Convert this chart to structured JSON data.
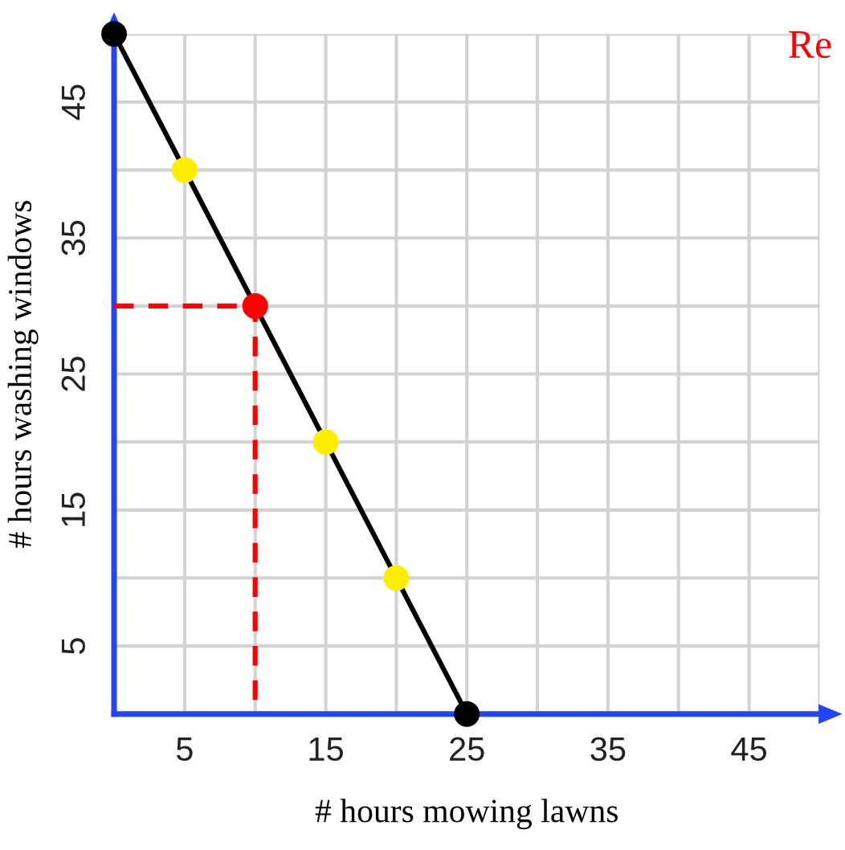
{
  "chart_data": {
    "type": "line",
    "xlabel": "# hours mowing lawns",
    "ylabel": "# hours washing windows",
    "annotations": [
      "Re"
    ],
    "xlim": [
      0,
      50
    ],
    "ylim": [
      0,
      50
    ],
    "xticks": [
      5,
      {
        "value": 10,
        "label": null
      },
      15,
      {
        "value": 20,
        "label": null
      },
      25,
      {
        "value": 30,
        "label": null
      },
      35,
      {
        "value": 40,
        "label": null
      },
      45,
      {
        "value": 50,
        "label": null
      }
    ],
    "yticks": [
      5,
      {
        "value": 10,
        "label": null
      },
      15,
      {
        "value": 20,
        "label": null
      },
      25,
      {
        "value": 30,
        "label": null
      },
      35,
      {
        "value": 40,
        "label": null
      },
      45,
      {
        "value": 50,
        "label": null
      }
    ],
    "grid": true,
    "series": [
      {
        "color": "#000000",
        "x": [
          0,
          25
        ],
        "values": [
          50,
          0
        ],
        "line_style": "solid"
      },
      {
        "color": "#ff0000",
        "x": [
          0,
          10,
          10
        ],
        "values": [
          30,
          30,
          0
        ],
        "line_style": "dashed"
      },
      {
        "type": "scatter",
        "x": [
          0,
          5,
          10,
          15,
          20,
          25
        ],
        "values": [
          50,
          40,
          30,
          20,
          10,
          0
        ],
        "colors": [
          "#000000",
          "#ffee00",
          "#ff0000",
          "#ffee00",
          "#ffee00",
          "#000000"
        ],
        "marker": "circle"
      }
    ]
  }
}
